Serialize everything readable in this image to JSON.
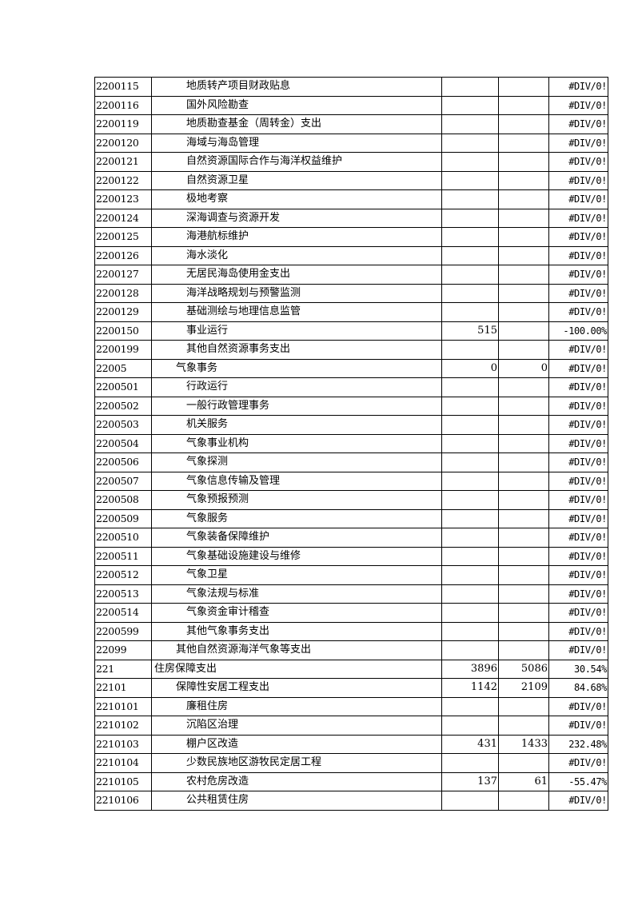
{
  "rows": [
    {
      "code": "2200115",
      "name": "地质转产项目财政贴息",
      "level": 3,
      "v1": "",
      "v2": "",
      "pct": "#DIV/0!"
    },
    {
      "code": "2200116",
      "name": "国外风险勘查",
      "level": 3,
      "v1": "",
      "v2": "",
      "pct": "#DIV/0!"
    },
    {
      "code": "2200119",
      "name": "地质勘查基金（周转金）支出",
      "level": 3,
      "v1": "",
      "v2": "",
      "pct": "#DIV/0!"
    },
    {
      "code": "2200120",
      "name": "海域与海岛管理",
      "level": 3,
      "v1": "",
      "v2": "",
      "pct": "#DIV/0!"
    },
    {
      "code": "2200121",
      "name": "自然资源国际合作与海洋权益维护",
      "level": 3,
      "v1": "",
      "v2": "",
      "pct": "#DIV/0!"
    },
    {
      "code": "2200122",
      "name": "自然资源卫星",
      "level": 3,
      "v1": "",
      "v2": "",
      "pct": "#DIV/0!"
    },
    {
      "code": "2200123",
      "name": "极地考察",
      "level": 3,
      "v1": "",
      "v2": "",
      "pct": "#DIV/0!"
    },
    {
      "code": "2200124",
      "name": "深海调查与资源开发",
      "level": 3,
      "v1": "",
      "v2": "",
      "pct": "#DIV/0!"
    },
    {
      "code": "2200125",
      "name": "海港航标维护",
      "level": 3,
      "v1": "",
      "v2": "",
      "pct": "#DIV/0!"
    },
    {
      "code": "2200126",
      "name": "海水淡化",
      "level": 3,
      "v1": "",
      "v2": "",
      "pct": "#DIV/0!"
    },
    {
      "code": "2200127",
      "name": "无居民海岛使用金支出",
      "level": 3,
      "v1": "",
      "v2": "",
      "pct": "#DIV/0!"
    },
    {
      "code": "2200128",
      "name": "海洋战略规划与预警监测",
      "level": 3,
      "v1": "",
      "v2": "",
      "pct": "#DIV/0!"
    },
    {
      "code": "2200129",
      "name": "基础测绘与地理信息监管",
      "level": 3,
      "v1": "",
      "v2": "",
      "pct": "#DIV/0!"
    },
    {
      "code": "2200150",
      "name": "事业运行",
      "level": 3,
      "v1": "515",
      "v2": "",
      "pct": "-100.00%"
    },
    {
      "code": "2200199",
      "name": "其他自然资源事务支出",
      "level": 3,
      "v1": "",
      "v2": "",
      "pct": "#DIV/0!"
    },
    {
      "code": "22005",
      "name": "气象事务",
      "level": 2,
      "v1": "0",
      "v2": "0",
      "pct": "#DIV/0!"
    },
    {
      "code": "2200501",
      "name": "行政运行",
      "level": 3,
      "v1": "",
      "v2": "",
      "pct": "#DIV/0!"
    },
    {
      "code": "2200502",
      "name": "一般行政管理事务",
      "level": 3,
      "v1": "",
      "v2": "",
      "pct": "#DIV/0!"
    },
    {
      "code": "2200503",
      "name": "机关服务",
      "level": 3,
      "v1": "",
      "v2": "",
      "pct": "#DIV/0!"
    },
    {
      "code": "2200504",
      "name": "气象事业机构",
      "level": 3,
      "v1": "",
      "v2": "",
      "pct": "#DIV/0!"
    },
    {
      "code": "2200506",
      "name": "气象探测",
      "level": 3,
      "v1": "",
      "v2": "",
      "pct": "#DIV/0!"
    },
    {
      "code": "2200507",
      "name": "气象信息传输及管理",
      "level": 3,
      "v1": "",
      "v2": "",
      "pct": "#DIV/0!"
    },
    {
      "code": "2200508",
      "name": "气象预报预测",
      "level": 3,
      "v1": "",
      "v2": "",
      "pct": "#DIV/0!"
    },
    {
      "code": "2200509",
      "name": "气象服务",
      "level": 3,
      "v1": "",
      "v2": "",
      "pct": "#DIV/0!"
    },
    {
      "code": "2200510",
      "name": "气象装备保障维护",
      "level": 3,
      "v1": "",
      "v2": "",
      "pct": "#DIV/0!"
    },
    {
      "code": "2200511",
      "name": "气象基础设施建设与维修",
      "level": 3,
      "v1": "",
      "v2": "",
      "pct": "#DIV/0!"
    },
    {
      "code": "2200512",
      "name": "气象卫星",
      "level": 3,
      "v1": "",
      "v2": "",
      "pct": "#DIV/0!"
    },
    {
      "code": "2200513",
      "name": "气象法规与标准",
      "level": 3,
      "v1": "",
      "v2": "",
      "pct": "#DIV/0!"
    },
    {
      "code": "2200514",
      "name": "气象资金审计稽查",
      "level": 3,
      "v1": "",
      "v2": "",
      "pct": "#DIV/0!"
    },
    {
      "code": "2200599",
      "name": "其他气象事务支出",
      "level": 3,
      "v1": "",
      "v2": "",
      "pct": "#DIV/0!"
    },
    {
      "code": "22099",
      "name": "其他自然资源海洋气象等支出",
      "level": 2,
      "v1": "",
      "v2": "",
      "pct": "#DIV/0!"
    },
    {
      "code": "221",
      "name": "住房保障支出",
      "level": 1,
      "v1": "3896",
      "v2": "5086",
      "pct": "30.54%"
    },
    {
      "code": "22101",
      "name": "保障性安居工程支出",
      "level": 2,
      "v1": "1142",
      "v2": "2109",
      "pct": "84.68%"
    },
    {
      "code": "2210101",
      "name": "廉租住房",
      "level": 3,
      "v1": "",
      "v2": "",
      "pct": "#DIV/0!"
    },
    {
      "code": "2210102",
      "name": "沉陷区治理",
      "level": 3,
      "v1": "",
      "v2": "",
      "pct": "#DIV/0!"
    },
    {
      "code": "2210103",
      "name": "棚户区改造",
      "level": 3,
      "v1": "431",
      "v2": "1433",
      "pct": "232.48%"
    },
    {
      "code": "2210104",
      "name": "少数民族地区游牧民定居工程",
      "level": 3,
      "v1": "",
      "v2": "",
      "pct": "#DIV/0!"
    },
    {
      "code": "2210105",
      "name": "农村危房改造",
      "level": 3,
      "v1": "137",
      "v2": "61",
      "pct": "-55.47%"
    },
    {
      "code": "2210106",
      "name": "公共租赁住房",
      "level": 3,
      "v1": "",
      "v2": "",
      "pct": "#DIV/0!"
    }
  ]
}
